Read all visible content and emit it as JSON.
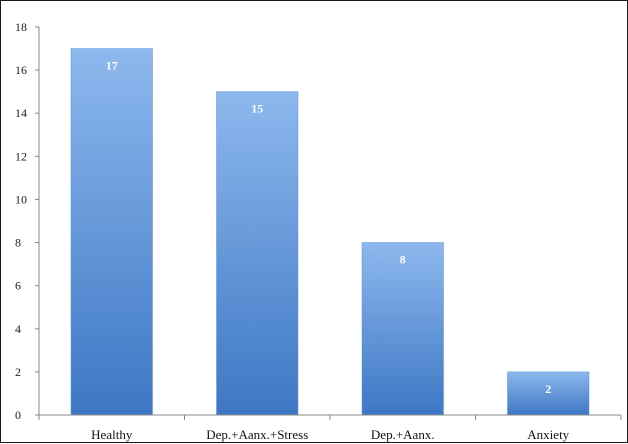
{
  "chart_data": {
    "type": "bar",
    "categories": [
      "Healthy",
      "Dep.+Aanx.+Stress",
      "Dep.+Aanx.",
      "Anxiety"
    ],
    "values": [
      17,
      15,
      8,
      2
    ],
    "data_labels": [
      "17",
      "15",
      "8",
      "2"
    ],
    "title": "",
    "xlabel": "",
    "ylabel": "",
    "ylim": [
      0,
      18
    ],
    "yticks": [
      0,
      2,
      4,
      6,
      8,
      10,
      12,
      14,
      16,
      18
    ],
    "grid": false,
    "legend": "none",
    "bar_color_top": "#8db8ee",
    "bar_color_bottom": "#3d77c4"
  }
}
